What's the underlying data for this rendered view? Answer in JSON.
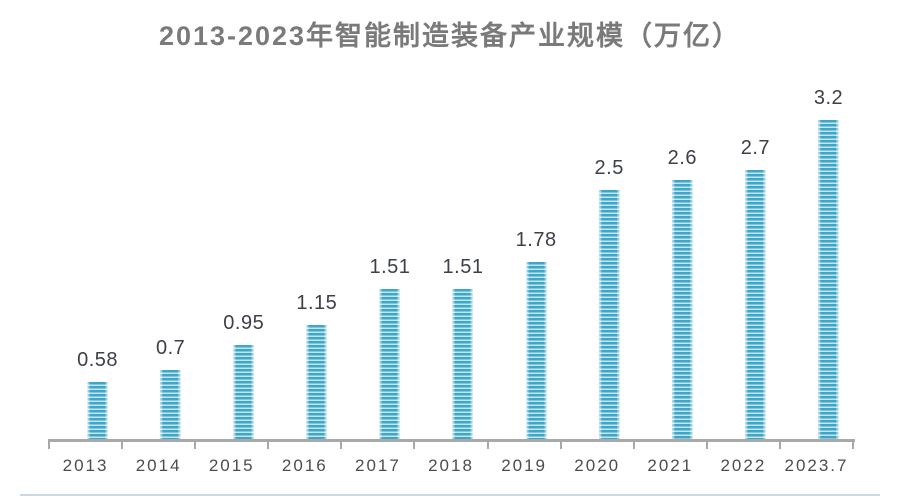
{
  "chart_data": {
    "type": "bar",
    "title": "2013-2023年智能制造装备产业规模（万亿）",
    "categories": [
      "2013",
      "2014",
      "2015",
      "2016",
      "2017",
      "2018",
      "2019",
      "2020",
      "2021",
      "2022",
      "2023.7"
    ],
    "values": [
      0.58,
      0.7,
      0.95,
      1.15,
      1.51,
      1.51,
      1.78,
      2.5,
      2.6,
      2.7,
      3.2
    ],
    "value_labels": [
      "0.58",
      "0.7",
      "0.95",
      "1.15",
      "1.51",
      "1.51",
      "1.78",
      "2.5",
      "2.6",
      "2.7",
      "3.2"
    ],
    "xlabel": "",
    "ylabel": "",
    "ylim": [
      0,
      3.5
    ],
    "grid": false,
    "legend": false,
    "layout": {
      "data_labels": "above bars",
      "y_axis_visible": false,
      "bar_fill": "horizontal stripes"
    },
    "colors": {
      "bar_stripe_dark": "#3ea6c7",
      "bar_stripe_light": "#c3e5f0",
      "title": "#7a7a7a",
      "value_label": "#3c4049",
      "tick_label": "#4d4d4d",
      "axis": "#a9a9a9",
      "bottom_divider": "#ccd6e4"
    }
  }
}
